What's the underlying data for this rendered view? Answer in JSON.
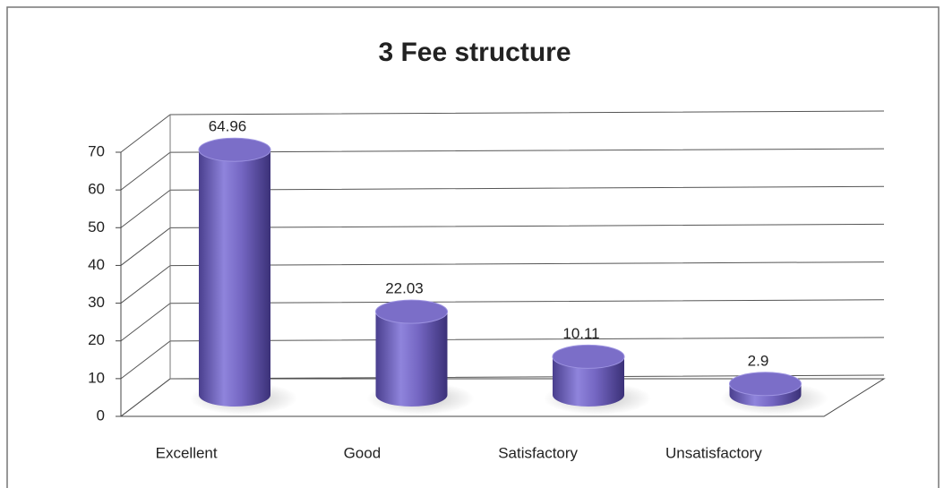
{
  "chart_data": {
    "type": "bar",
    "title": "3 Fee structure",
    "categories": [
      "Excellent",
      "Good",
      "Satisfactory",
      "Unsatisfactory"
    ],
    "values": [
      64.96,
      22.03,
      10.11,
      2.9
    ],
    "color": "#7b6ec8",
    "ylim": [
      0,
      70
    ],
    "yticks": [
      0,
      10,
      20,
      30,
      40,
      50,
      60,
      70
    ],
    "grid": true
  }
}
